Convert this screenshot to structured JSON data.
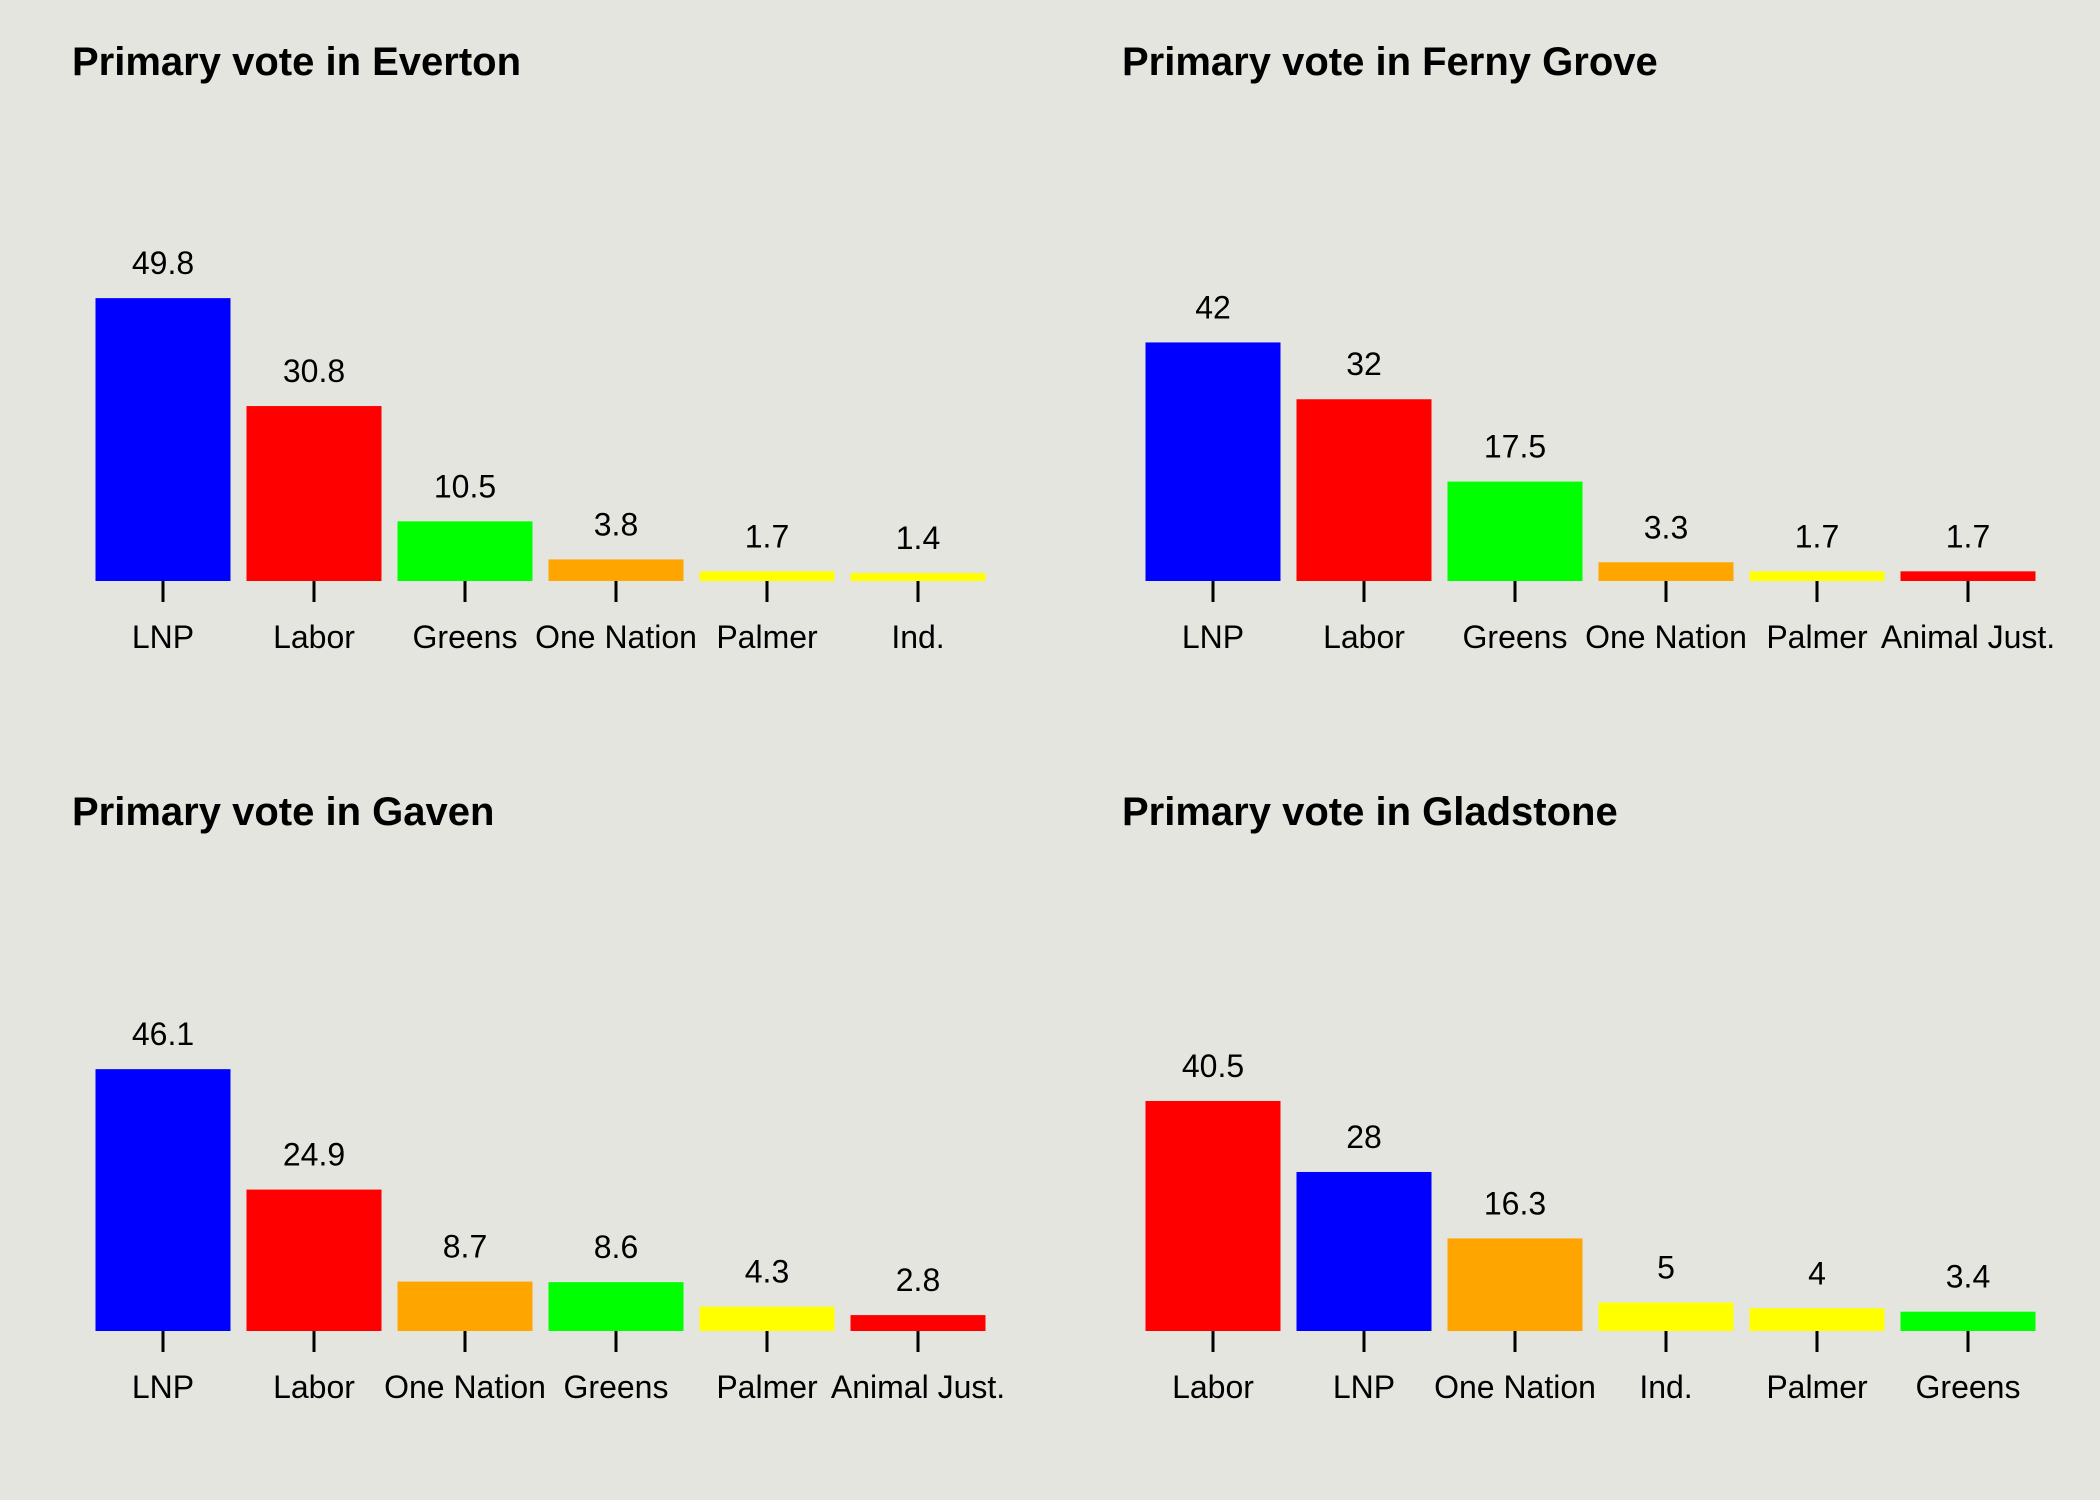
{
  "chart_data": [
    {
      "type": "bar",
      "title": "Primary vote in Everton",
      "xlabel": "",
      "ylabel": "",
      "categories": [
        "LNP",
        "Labor",
        "Greens",
        "One Nation",
        "Palmer",
        "Ind."
      ],
      "values": [
        49.8,
        30.8,
        10.5,
        3.8,
        1.7,
        1.4
      ],
      "colors": [
        "#0000ff",
        "#ff0000",
        "#00ff00",
        "#ffa500",
        "#ffff00",
        "#ffff00"
      ],
      "grid": false,
      "legend": "none"
    },
    {
      "type": "bar",
      "title": "Primary vote in Ferny Grove",
      "xlabel": "",
      "ylabel": "",
      "categories": [
        "LNP",
        "Labor",
        "Greens",
        "One Nation",
        "Palmer",
        "Animal Just."
      ],
      "values": [
        42,
        32,
        17.5,
        3.3,
        1.7,
        1.7
      ],
      "colors": [
        "#0000ff",
        "#ff0000",
        "#00ff00",
        "#ffa500",
        "#ffff00",
        "#ff0000"
      ],
      "grid": false,
      "legend": "none"
    },
    {
      "type": "bar",
      "title": "Primary vote in Gaven",
      "xlabel": "",
      "ylabel": "",
      "categories": [
        "LNP",
        "Labor",
        "One Nation",
        "Greens",
        "Palmer",
        "Animal Just."
      ],
      "values": [
        46.1,
        24.9,
        8.7,
        8.6,
        4.3,
        2.8
      ],
      "colors": [
        "#0000ff",
        "#ff0000",
        "#ffa500",
        "#00ff00",
        "#ffff00",
        "#ff0000"
      ],
      "grid": false,
      "legend": "none"
    },
    {
      "type": "bar",
      "title": "Primary vote in Gladstone",
      "xlabel": "",
      "ylabel": "",
      "categories": [
        "Labor",
        "LNP",
        "One Nation",
        "Ind.",
        "Palmer",
        "Greens"
      ],
      "values": [
        40.5,
        28,
        16.3,
        5,
        4,
        3.4
      ],
      "colors": [
        "#ff0000",
        "#0000ff",
        "#ffa500",
        "#ffff00",
        "#ffff00",
        "#00ff00"
      ],
      "grid": false,
      "legend": "none"
    }
  ]
}
